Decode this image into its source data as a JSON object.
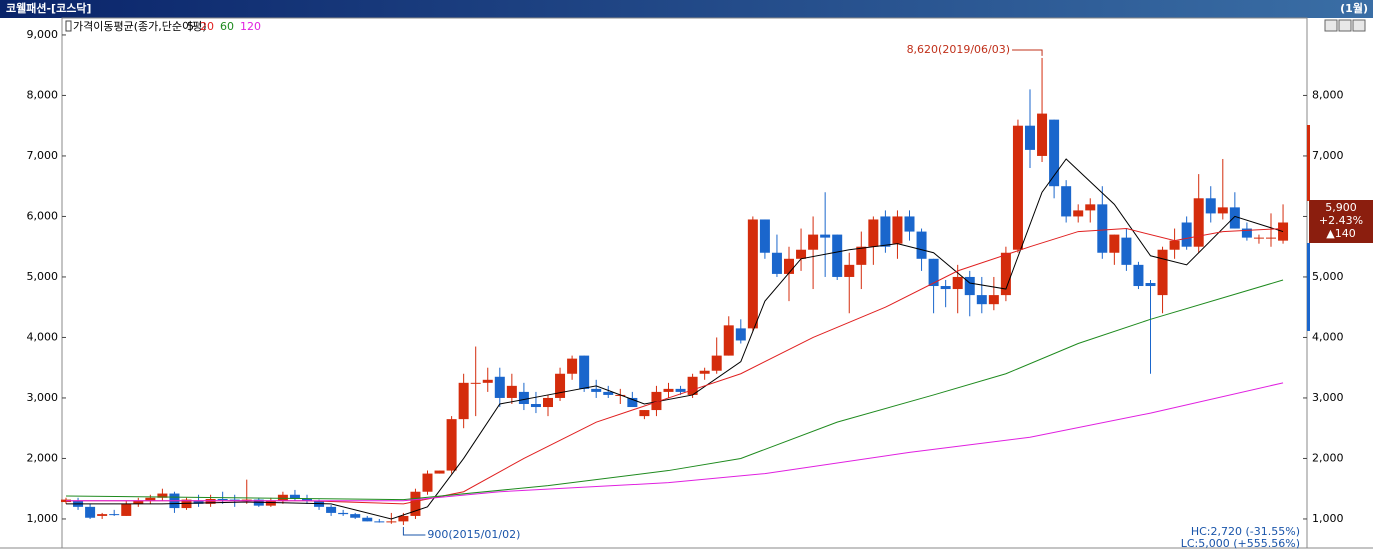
{
  "header": {
    "title": "코웰패션-[코스닥]",
    "period": "(1월)"
  },
  "chart_data": {
    "type": "candlestick",
    "legend_title": "가격이동평균(종가,단순이평)",
    "up_color": "#d42c0c",
    "down_color": "#1a66cc",
    "ylim": [
      520,
      9280
    ],
    "yticks": [
      {
        "value": 1000,
        "label": "1,000"
      },
      {
        "value": 2000,
        "label": "2,000"
      },
      {
        "value": 3000,
        "label": "3,000"
      },
      {
        "value": 4000,
        "label": "4,000"
      },
      {
        "value": 5000,
        "label": "5,000"
      },
      {
        "value": 6000,
        "label": "6,000"
      },
      {
        "value": 7000,
        "label": "7,000"
      },
      {
        "value": 8000,
        "label": "8,000"
      },
      {
        "value": 9000,
        "label": "9,000"
      }
    ],
    "y2ticks": [
      {
        "value": 1000,
        "label": "1,000"
      },
      {
        "value": 2000,
        "label": "2,000"
      },
      {
        "value": 3000,
        "label": "3,000"
      },
      {
        "value": 4000,
        "label": "4,000"
      },
      {
        "value": 5000,
        "label": "5,000"
      },
      {
        "value": 6000,
        "label": "6,000"
      },
      {
        "value": 7000,
        "label": "7,000"
      },
      {
        "value": 8000,
        "label": "8,000"
      }
    ],
    "candles": {
      "open": [
        1280,
        1300,
        1200,
        1050,
        1080,
        1050,
        1250,
        1300,
        1350,
        1420,
        1180,
        1300,
        1250,
        1330,
        1320,
        1300,
        1320,
        1220,
        1300,
        1400,
        1330,
        1300,
        1200,
        1100,
        1080,
        1020,
        960,
        950,
        960,
        1050,
        1450,
        1750,
        1800,
        2650,
        3250,
        3250,
        3350,
        3000,
        3100,
        2900,
        2850,
        3000,
        3400,
        3700,
        3150,
        3100,
        3050,
        3000,
        2700,
        2800,
        3100,
        3150,
        3050,
        3400,
        3450,
        3700,
        4150,
        4150,
        5950,
        5400,
        5050,
        5300,
        5450,
        5700,
        5700,
        5000,
        5200,
        5500,
        6000,
        5550,
        6000,
        5750,
        5300,
        4850,
        4800,
        5000,
        4700,
        4550,
        4700,
        5450,
        7500,
        7000,
        7600,
        6500,
        6000,
        6100,
        6200,
        5400,
        5650,
        5200,
        4900,
        4700,
        5450,
        5900,
        5500,
        6300,
        6050,
        6150,
        5800,
        5650,
        5650,
        5600
      ],
      "high": [
        1350,
        1350,
        1250,
        1100,
        1150,
        1300,
        1350,
        1400,
        1500,
        1450,
        1350,
        1400,
        1400,
        1450,
        1400,
        1650,
        1350,
        1350,
        1450,
        1480,
        1400,
        1320,
        1230,
        1150,
        1100,
        1050,
        1000,
        1100,
        1100,
        1500,
        1800,
        1800,
        2700,
        3400,
        3850,
        3500,
        3500,
        3400,
        3250,
        3100,
        3050,
        3500,
        3700,
        3700,
        3300,
        3200,
        3150,
        3100,
        2800,
        3200,
        3250,
        3200,
        3400,
        3500,
        4000,
        4350,
        4300,
        6000,
        5950,
        5700,
        5500,
        5800,
        6000,
        6400,
        5700,
        5400,
        5750,
        6000,
        6100,
        6100,
        6100,
        5800,
        5300,
        4950,
        5200,
        5100,
        5000,
        5000,
        5500,
        7600,
        8100,
        8620,
        7600,
        6600,
        6200,
        6300,
        6500,
        5700,
        5800,
        5250,
        4950,
        5500,
        5800,
        6000,
        6700,
        6500,
        6950,
        6400,
        5900,
        5700,
        6050,
        6200
      ],
      "low": [
        1250,
        1150,
        1000,
        1000,
        1050,
        1050,
        1200,
        1250,
        1300,
        1100,
        1150,
        1200,
        1200,
        1250,
        1200,
        1250,
        1200,
        1200,
        1250,
        1300,
        1250,
        1150,
        1050,
        1050,
        1000,
        960,
        940,
        920,
        900,
        1000,
        1400,
        1750,
        1750,
        2500,
        2700,
        3100,
        2850,
        2900,
        2800,
        2750,
        2700,
        2950,
        3300,
        3100,
        3000,
        3000,
        2900,
        2850,
        2650,
        2700,
        3000,
        3050,
        3000,
        3300,
        3400,
        3700,
        3900,
        4100,
        5300,
        5000,
        4600,
        5100,
        4800,
        5000,
        4950,
        4400,
        4800,
        5200,
        5400,
        5300,
        5600,
        5100,
        4400,
        4500,
        4400,
        4350,
        4400,
        4450,
        4600,
        5400,
        6800,
        6900,
        6300,
        5900,
        5900,
        5900,
        5300,
        5200,
        5100,
        4800,
        3400,
        4400,
        5300,
        5450,
        5400,
        5900,
        5950,
        5800,
        5600,
        5550,
        5500,
        5550
      ],
      "close": [
        1320,
        1200,
        1020,
        1080,
        1070,
        1250,
        1300,
        1350,
        1420,
        1180,
        1320,
        1250,
        1330,
        1320,
        1300,
        1320,
        1220,
        1300,
        1400,
        1330,
        1300,
        1200,
        1100,
        1080,
        1020,
        960,
        950,
        960,
        1050,
        1450,
        1750,
        1800,
        2650,
        3250,
        3250,
        3300,
        3000,
        3200,
        2900,
        2850,
        3000,
        3400,
        3650,
        3150,
        3100,
        3050,
        3050,
        2850,
        2800,
        3100,
        3150,
        3100,
        3350,
        3450,
        3700,
        4200,
        3950,
        5950,
        5400,
        5050,
        5300,
        5450,
        5700,
        5650,
        5000,
        5200,
        5500,
        5950,
        5500,
        6000,
        5750,
        5300,
        4850,
        4800,
        5000,
        4700,
        4550,
        4700,
        5400,
        7500,
        7100,
        7700,
        6500,
        6000,
        6100,
        6200,
        5400,
        5700,
        5200,
        4850,
        4850,
        5450,
        5600,
        5500,
        6300,
        6050,
        6150,
        5800,
        5650,
        5650,
        5650,
        5900
      ]
    },
    "series": [
      {
        "name": "5",
        "color": "#000000",
        "x": [
          0,
          8,
          15,
          22,
          27,
          30,
          33,
          36,
          40,
          44,
          48,
          52,
          56,
          58,
          61,
          65,
          69,
          72,
          75,
          78,
          81,
          83,
          87,
          90,
          93,
          97,
          101
        ],
        "values": [
          1250,
          1250,
          1280,
          1250,
          1000,
          1200,
          2000,
          2900,
          3050,
          3200,
          2900,
          3050,
          3600,
          4600,
          5300,
          5450,
          5550,
          5400,
          4900,
          4800,
          6400,
          6950,
          6200,
          5350,
          5200,
          6000,
          5750
        ]
      },
      {
        "name": "20",
        "color": "#e02020",
        "x": [
          0,
          20,
          28,
          33,
          38,
          44,
          50,
          56,
          62,
          68,
          74,
          80,
          84,
          88,
          92,
          96,
          101
        ],
        "values": [
          1300,
          1300,
          1250,
          1450,
          2000,
          2600,
          3000,
          3400,
          4000,
          4500,
          5100,
          5500,
          5750,
          5800,
          5600,
          5750,
          5800
        ]
      },
      {
        "name": "60",
        "color": "#1e8a1e",
        "x": [
          0,
          28,
          40,
          50,
          56,
          64,
          72,
          78,
          84,
          90,
          101
        ],
        "values": [
          1380,
          1320,
          1550,
          1800,
          2000,
          2600,
          3050,
          3400,
          3900,
          4300,
          4950
        ]
      },
      {
        "name": "120",
        "color": "#e020e0",
        "x": [
          0,
          28,
          36,
          50,
          58,
          70,
          80,
          90,
          101
        ],
        "values": [
          1300,
          1300,
          1450,
          1600,
          1750,
          2100,
          2350,
          2750,
          3250
        ]
      }
    ],
    "annotations": {
      "high": "8,620(2019/06/03)",
      "low": "900(2015/01/02)",
      "hc": "HC:2,720 (-31.55%)",
      "lc": "LC:5,000 (+555.56%)"
    },
    "price_box": [
      "5,900",
      "+2.43%",
      "▲140"
    ]
  }
}
